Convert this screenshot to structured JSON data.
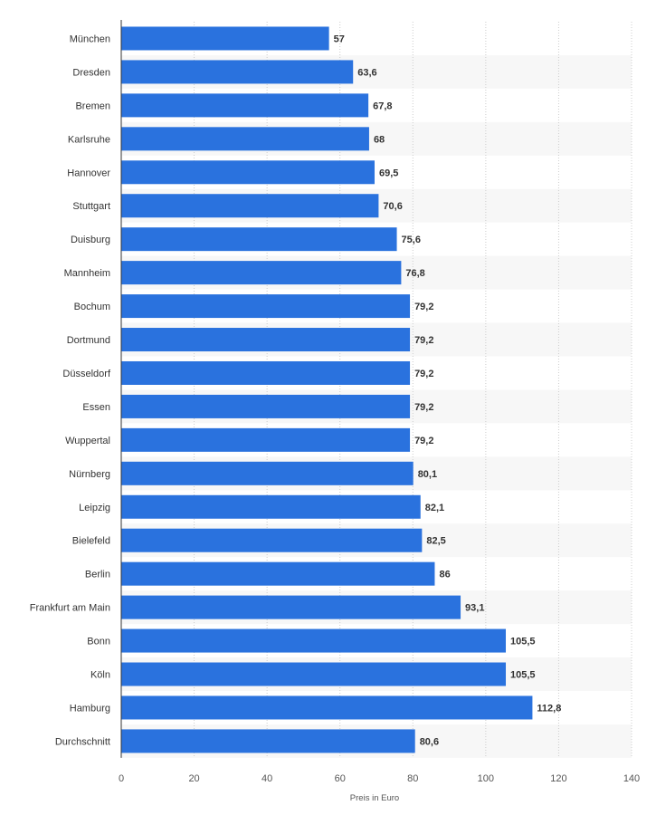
{
  "chart_data": {
    "type": "bar",
    "orientation": "horizontal",
    "categories": [
      "München",
      "Dresden",
      "Bremen",
      "Karlsruhe",
      "Hannover",
      "Stuttgart",
      "Duisburg",
      "Mannheim",
      "Bochum",
      "Dortmund",
      "Düsseldorf",
      "Essen",
      "Wuppertal",
      "Nürnberg",
      "Leipzig",
      "Bielefeld",
      "Berlin",
      "Frankfurt am Main",
      "Bonn",
      "Köln",
      "Hamburg",
      "Durchschnitt"
    ],
    "values": [
      57,
      63.6,
      67.8,
      68,
      69.5,
      70.6,
      75.6,
      76.8,
      79.2,
      79.2,
      79.2,
      79.2,
      79.2,
      80.1,
      82.1,
      82.5,
      86,
      93.1,
      105.5,
      105.5,
      112.8,
      80.6
    ],
    "value_labels": [
      "57",
      "63,6",
      "67,8",
      "68",
      "69,5",
      "70,6",
      "75,6",
      "76,8",
      "79,2",
      "79,2",
      "79,2",
      "79,2",
      "79,2",
      "80,1",
      "82,1",
      "82,5",
      "86",
      "93,1",
      "105,5",
      "105,5",
      "112,8",
      "80,6"
    ],
    "title": "",
    "xlabel": "Preis in Euro",
    "ylabel": "",
    "xlim": [
      0,
      140
    ],
    "ticks": [
      0,
      20,
      40,
      60,
      80,
      100,
      120,
      140
    ],
    "tick_labels": [
      "0",
      "20",
      "40",
      "60",
      "80",
      "100",
      "120",
      "140"
    ],
    "grid": true,
    "grid_style": "dotted vertical",
    "alternating_row_bands": true,
    "legend": "none",
    "colors": {
      "bar": "#2a72de",
      "band": "#f7f7f7",
      "grid": "#cccccc",
      "axis": "#333333"
    }
  }
}
